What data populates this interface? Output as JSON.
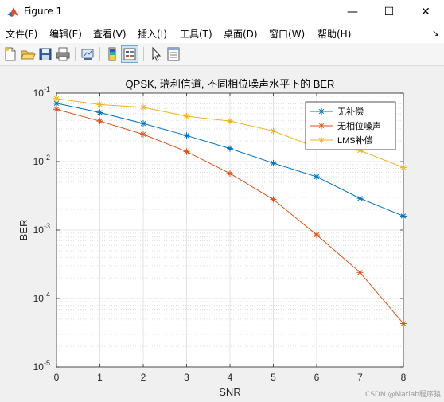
{
  "window": {
    "title": "Figure 1",
    "controls": {
      "minimize": "—",
      "maximize": "☐",
      "close": "✕"
    }
  },
  "menubar": {
    "items": [
      "文件(F)",
      "编辑(E)",
      "查看(V)",
      "插入(I)",
      "工具(T)",
      "桌面(D)",
      "窗口(W)",
      "帮助(H)"
    ],
    "overflow_icon": "arrow-icon"
  },
  "toolbar": {
    "icons": [
      "new-figure-icon",
      "open-file-icon",
      "save-icon",
      "print-icon",
      "link-plot-icon",
      "insert-colorbar-icon",
      "insert-legend-icon",
      "pointer-icon",
      "property-inspector-icon"
    ]
  },
  "chart_data": {
    "type": "line",
    "title": "QPSK, 瑞利信道, 不同相位噪声水平下的 BER",
    "xlabel": "SNR",
    "ylabel": "BER",
    "xlim": [
      0,
      8
    ],
    "ylim": [
      1e-05,
      0.1
    ],
    "yscale": "log",
    "x": [
      0,
      1,
      2,
      3,
      4,
      5,
      6,
      7,
      8
    ],
    "xtick_labels": [
      "0",
      "1",
      "2",
      "3",
      "4",
      "5",
      "6",
      "7",
      "8"
    ],
    "ytick_labels": [
      {
        "base": "10",
        "exp": "-5"
      },
      {
        "base": "10",
        "exp": "-4"
      },
      {
        "base": "10",
        "exp": "-3"
      },
      {
        "base": "10",
        "exp": "-2"
      },
      {
        "base": "10",
        "exp": "-1"
      }
    ],
    "grid": true,
    "minor_grid": true,
    "legend_position": "top-right",
    "series": [
      {
        "name": "无补偿",
        "color": "#0072BD",
        "marker": "*",
        "values": [
          0.071,
          0.052,
          0.036,
          0.024,
          0.0155,
          0.0095,
          0.006,
          0.0029,
          0.0016
        ]
      },
      {
        "name": "无相位噪声",
        "color": "#D95319",
        "marker": "*",
        "values": [
          0.058,
          0.039,
          0.025,
          0.014,
          0.0067,
          0.0028,
          0.00085,
          0.00024,
          4.3e-05
        ]
      },
      {
        "name": "LMS补偿",
        "color": "#EDB120",
        "marker": "*",
        "values": [
          0.083,
          0.068,
          0.062,
          0.046,
          0.039,
          0.028,
          0.016,
          0.0145,
          0.0082
        ]
      }
    ]
  },
  "watermark": "CSDN @Matlab程序猿"
}
